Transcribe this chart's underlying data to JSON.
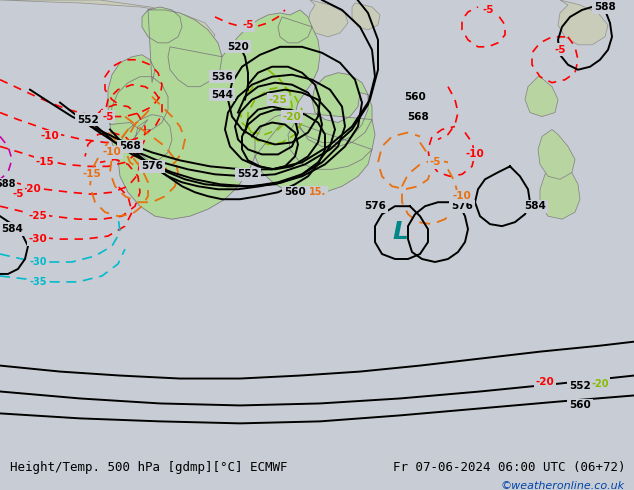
{
  "title_left": "Height/Temp. 500 hPa [gdmp][°C] ECMWF",
  "title_right": "Fr 07-06-2024 06:00 UTC (06+72)",
  "watermark": "©weatheronline.co.uk",
  "bg_color": "#c8ccd4",
  "land_color": "#c8d4b8",
  "aus_fill": "#b0d898",
  "nz_fill": "#b8d8a0",
  "title_fontsize": 9,
  "watermark_fontsize": 8,
  "watermark_color": "#0044aa"
}
